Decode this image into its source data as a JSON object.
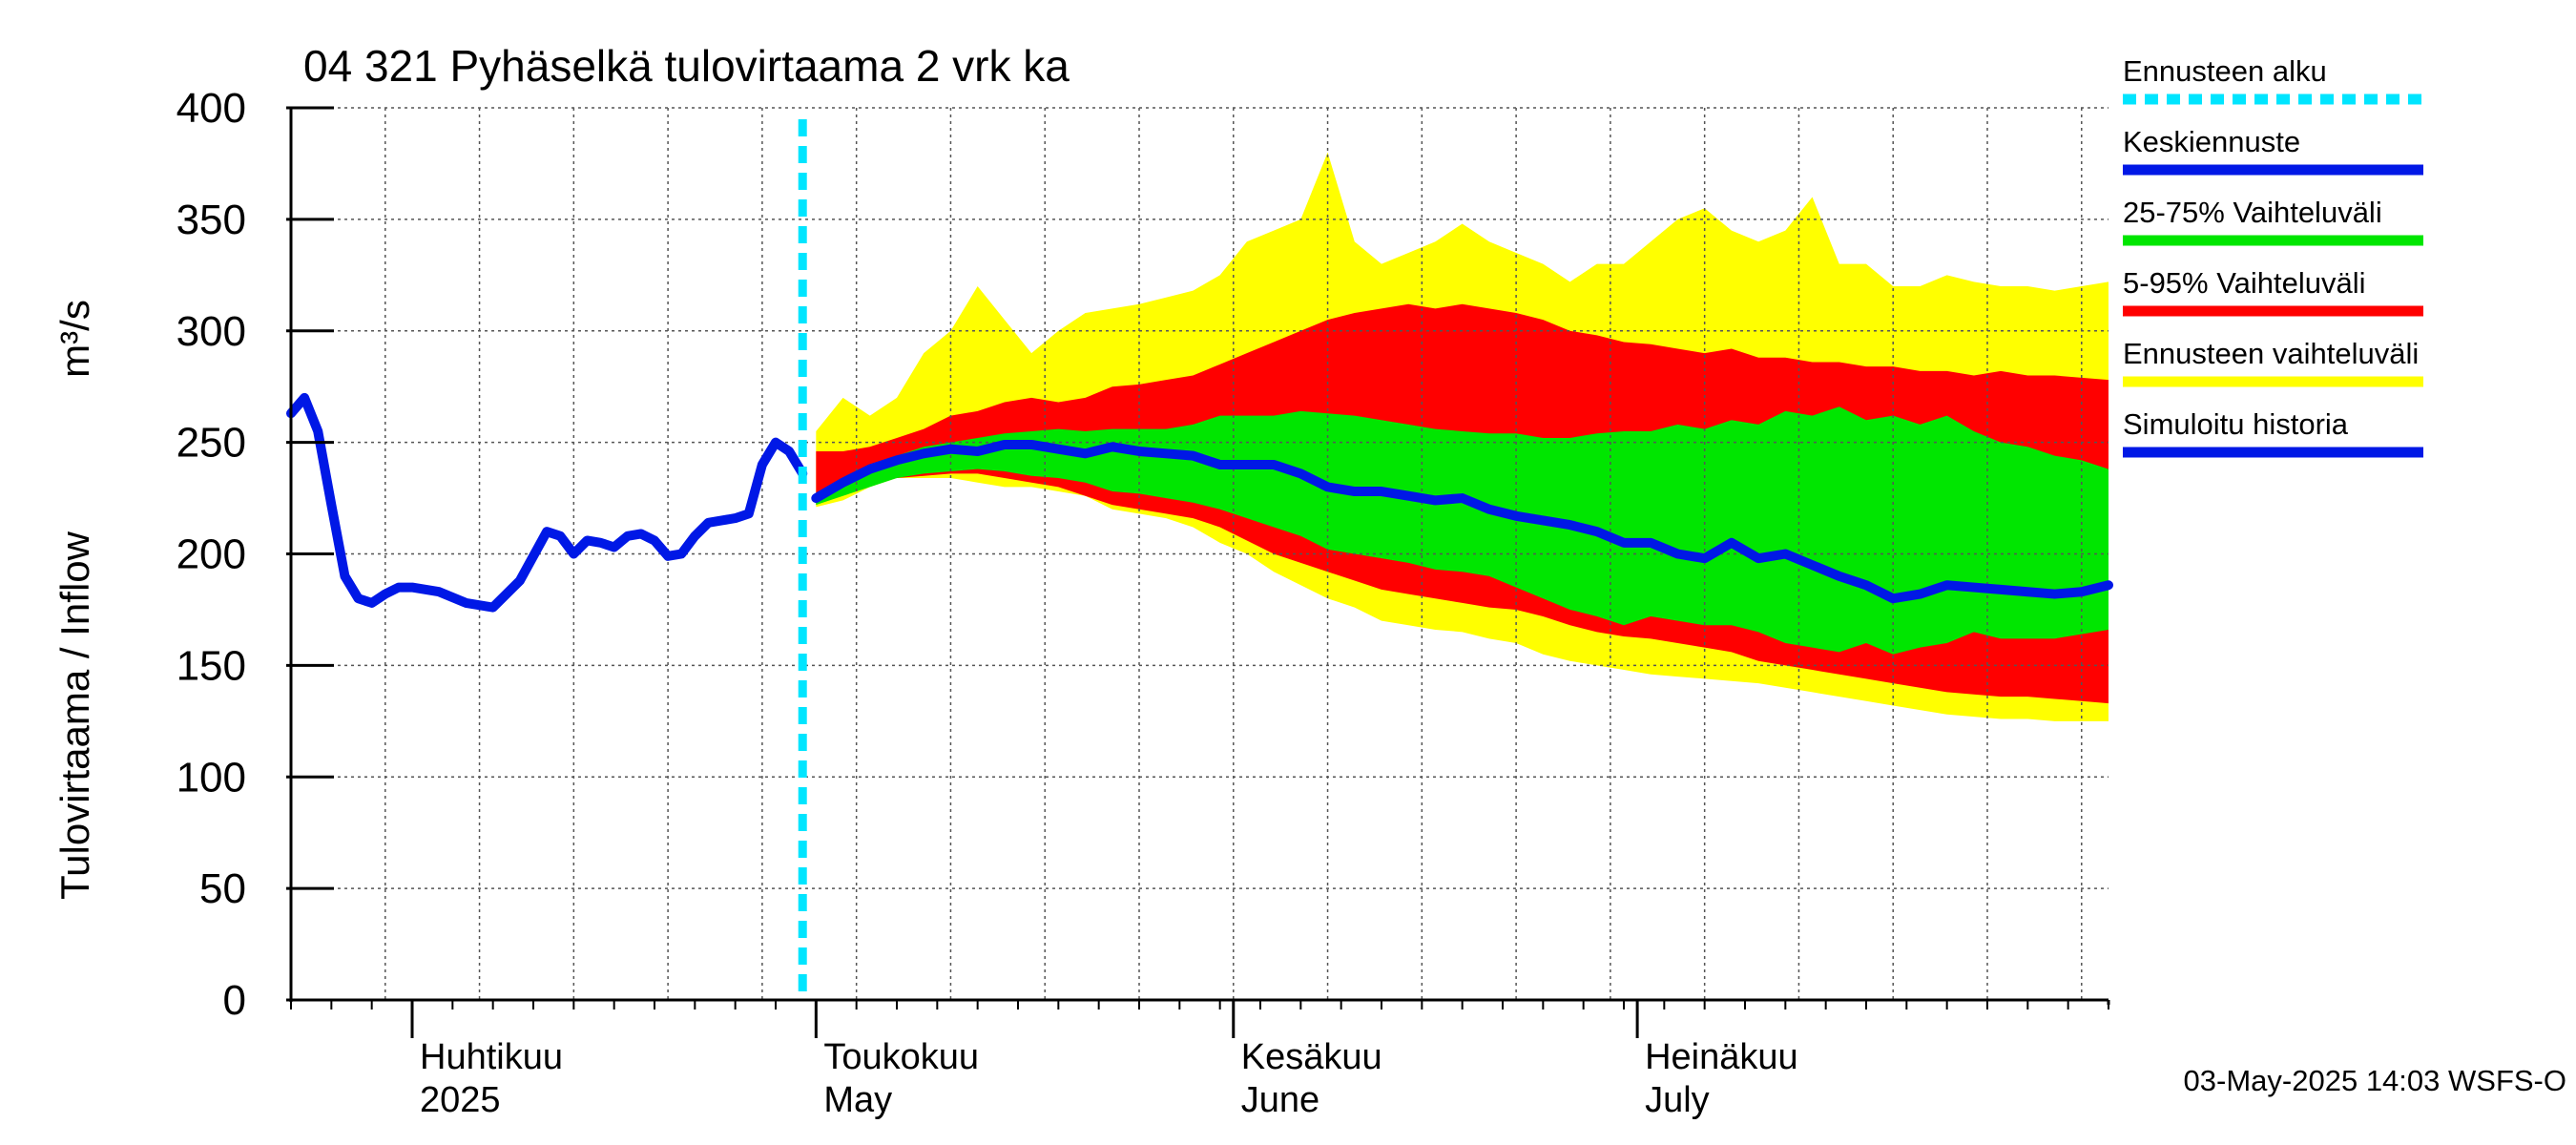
{
  "chart_data": {
    "type": "area",
    "title": "04 321 Pyhäselkä tulovirtaama 2 vrk ka",
    "ylabel": "Tulovirtaama / Inflow",
    "yunit": "m³/s",
    "ylim": [
      0,
      400
    ],
    "yticks": [
      0,
      50,
      100,
      150,
      200,
      250,
      300,
      350,
      400
    ],
    "x_range": [
      "2025-03-23",
      "2025-08-05"
    ],
    "month_labels": [
      {
        "line1": "Huhtikuu",
        "line2": "2025",
        "date": "2025-04-01"
      },
      {
        "line1": "Toukokuu",
        "line2": "May",
        "date": "2025-05-01"
      },
      {
        "line1": "Kesäkuu",
        "line2": "June",
        "date": "2025-06-01"
      },
      {
        "line1": "Heinäkuu",
        "line2": "July",
        "date": "2025-07-01"
      }
    ],
    "forecast_start": "2025-04-30",
    "grid": true,
    "legend_position": "right",
    "legend": [
      {
        "label": "Ennusteen alku",
        "color": "#00e5ff",
        "style": "dashed"
      },
      {
        "label": "Keskiennuste",
        "color": "#0018e6",
        "style": "solid"
      },
      {
        "label": "25-75% Vaihteluväli",
        "color": "#00e600",
        "style": "solid"
      },
      {
        "label": "5-95% Vaihteluväli",
        "color": "#ff0000",
        "style": "solid"
      },
      {
        "label": "Ennusteen vaihteluväli",
        "color": "#ffff00",
        "style": "solid"
      },
      {
        "label": "Simuloitu historia",
        "color": "#0018e6",
        "style": "solid"
      }
    ],
    "simulated_history": {
      "x": [
        "2025-03-23",
        "2025-03-24",
        "2025-03-25",
        "2025-03-26",
        "2025-03-27",
        "2025-03-28",
        "2025-03-29",
        "2025-03-30",
        "2025-03-31",
        "2025-04-01",
        "2025-04-03",
        "2025-04-05",
        "2025-04-07",
        "2025-04-09",
        "2025-04-11",
        "2025-04-12",
        "2025-04-13",
        "2025-04-14",
        "2025-04-15",
        "2025-04-16",
        "2025-04-17",
        "2025-04-18",
        "2025-04-19",
        "2025-04-20",
        "2025-04-21",
        "2025-04-22",
        "2025-04-23",
        "2025-04-24",
        "2025-04-25",
        "2025-04-26",
        "2025-04-27",
        "2025-04-28",
        "2025-04-29",
        "2025-04-30"
      ],
      "y": [
        263,
        270,
        255,
        222,
        190,
        180,
        178,
        182,
        185,
        185,
        183,
        178,
        176,
        188,
        210,
        208,
        200,
        206,
        205,
        203,
        208,
        209,
        206,
        199,
        200,
        208,
        214,
        215,
        216,
        218,
        240,
        250,
        246,
        236
      ]
    },
    "forecast": {
      "x": [
        "2025-05-01",
        "2025-05-03",
        "2025-05-05",
        "2025-05-07",
        "2025-05-09",
        "2025-05-11",
        "2025-05-13",
        "2025-05-15",
        "2025-05-17",
        "2025-05-19",
        "2025-05-21",
        "2025-05-23",
        "2025-05-25",
        "2025-05-27",
        "2025-05-29",
        "2025-05-31",
        "2025-06-02",
        "2025-06-04",
        "2025-06-06",
        "2025-06-08",
        "2025-06-10",
        "2025-06-12",
        "2025-06-14",
        "2025-06-16",
        "2025-06-18",
        "2025-06-20",
        "2025-06-22",
        "2025-06-24",
        "2025-06-26",
        "2025-06-28",
        "2025-06-30",
        "2025-07-02",
        "2025-07-04",
        "2025-07-06",
        "2025-07-08",
        "2025-07-10",
        "2025-07-12",
        "2025-07-14",
        "2025-07-16",
        "2025-07-18",
        "2025-07-20",
        "2025-07-22",
        "2025-07-24",
        "2025-07-26",
        "2025-07-28",
        "2025-07-30",
        "2025-08-01",
        "2025-08-03",
        "2025-08-05"
      ],
      "median": [
        225,
        232,
        238,
        242,
        245,
        247,
        246,
        249,
        249,
        247,
        245,
        248,
        246,
        245,
        244,
        240,
        240,
        240,
        236,
        230,
        228,
        228,
        226,
        224,
        225,
        220,
        217,
        215,
        213,
        210,
        205,
        205,
        200,
        198,
        205,
        198,
        200,
        195,
        190,
        186,
        180,
        182,
        186,
        185,
        184,
        183,
        182,
        183,
        186
      ],
      "p25": [
        222,
        226,
        230,
        234,
        236,
        237,
        238,
        237,
        235,
        234,
        232,
        228,
        227,
        225,
        223,
        220,
        216,
        212,
        208,
        202,
        200,
        198,
        196,
        193,
        192,
        190,
        185,
        180,
        175,
        172,
        168,
        172,
        170,
        168,
        168,
        165,
        160,
        158,
        156,
        160,
        155,
        158,
        160,
        165,
        162,
        162,
        162,
        164,
        166
      ],
      "p75": [
        226,
        234,
        240,
        244,
        248,
        250,
        252,
        254,
        255,
        256,
        255,
        256,
        256,
        256,
        258,
        262,
        262,
        262,
        264,
        263,
        262,
        260,
        258,
        256,
        255,
        254,
        254,
        252,
        252,
        254,
        255,
        255,
        258,
        256,
        260,
        258,
        264,
        262,
        266,
        260,
        262,
        258,
        262,
        255,
        250,
        248,
        244,
        242,
        238
      ],
      "p05": [
        222,
        228,
        232,
        234,
        235,
        236,
        236,
        234,
        232,
        230,
        226,
        222,
        220,
        218,
        216,
        212,
        206,
        200,
        196,
        192,
        188,
        184,
        182,
        180,
        178,
        176,
        175,
        172,
        168,
        165,
        163,
        162,
        160,
        158,
        156,
        152,
        150,
        148,
        146,
        144,
        142,
        140,
        138,
        137,
        136,
        136,
        135,
        134,
        133
      ],
      "p95": [
        246,
        246,
        248,
        252,
        256,
        262,
        264,
        268,
        270,
        268,
        270,
        275,
        276,
        278,
        280,
        285,
        290,
        295,
        300,
        305,
        308,
        310,
        312,
        310,
        312,
        310,
        308,
        305,
        300,
        298,
        295,
        294,
        292,
        290,
        292,
        288,
        288,
        286,
        286,
        284,
        284,
        282,
        282,
        280,
        282,
        280,
        280,
        279,
        278
      ],
      "min": [
        221,
        224,
        230,
        234,
        234,
        234,
        232,
        230,
        230,
        228,
        226,
        220,
        218,
        216,
        212,
        205,
        200,
        192,
        186,
        180,
        176,
        170,
        168,
        166,
        165,
        162,
        160,
        155,
        152,
        150,
        148,
        146,
        145,
        144,
        143,
        142,
        140,
        138,
        136,
        134,
        132,
        130,
        128,
        127,
        126,
        126,
        125,
        125,
        125
      ],
      "max": [
        255,
        270,
        262,
        270,
        290,
        300,
        320,
        305,
        290,
        300,
        308,
        310,
        312,
        315,
        318,
        325,
        340,
        345,
        350,
        380,
        340,
        330,
        335,
        340,
        348,
        340,
        335,
        330,
        322,
        330,
        330,
        340,
        350,
        355,
        345,
        340,
        345,
        360,
        330,
        330,
        320,
        320,
        325,
        322,
        320,
        320,
        318,
        320,
        322
      ]
    }
  },
  "footer": {
    "timestamp": "03-May-2025 14:03 WSFS-O"
  }
}
